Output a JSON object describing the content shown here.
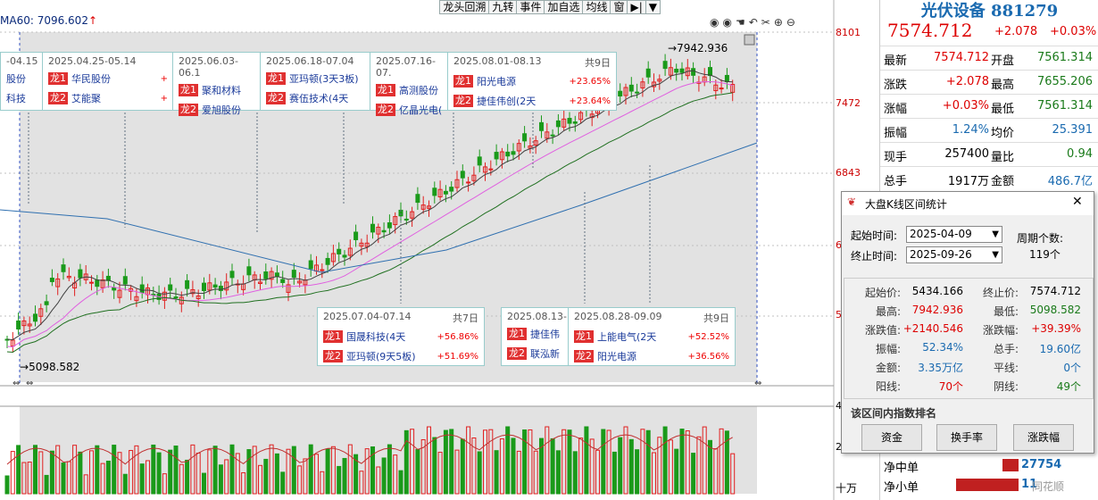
{
  "chart": {
    "ma_label": "MA60: 7096.602",
    "ma_arrow": "↑",
    "toolbar": [
      "龙头回溯",
      "九转",
      "事件",
      "加自选",
      "均线",
      "窗",
      "▶|",
      "▼"
    ],
    "icons": [
      "eye-icon",
      "eye-icon",
      "hand-icon",
      "undo-icon",
      "scissors-icon",
      "zoom-in-icon",
      "zoom-out-icon"
    ],
    "price_ticks": [
      "8101",
      "7472",
      "6843",
      "6",
      "5",
      "4",
      "2"
    ],
    "high_marker": "7942.936",
    "low_marker": "5098.582",
    "bottom_label": "十万",
    "events": [
      {
        "range": "-04.15",
        "rows": [
          {
            "tag": "",
            "name": "股份",
            "pct": ""
          },
          {
            "tag": "",
            "name": "科技",
            "pct": ""
          }
        ]
      },
      {
        "range": "2025.04.25-05.14",
        "rows": [
          {
            "tag": "龙1",
            "name": "华民股份",
            "pct": "+"
          },
          {
            "tag": "龙2",
            "name": "艾能聚",
            "pct": "+"
          }
        ]
      },
      {
        "range": "2025.06.03-06.1",
        "rows": [
          {
            "tag": "龙1",
            "name": "聚和材料",
            "pct": ""
          },
          {
            "tag": "龙2",
            "name": "爱旭股份",
            "pct": ""
          }
        ]
      },
      {
        "range": "2025.06.18-07.04",
        "rows": [
          {
            "tag": "龙1",
            "name": "亚玛顿(3天3板)",
            "pct": ""
          },
          {
            "tag": "龙2",
            "name": "赛伍技术(4天",
            "pct": ""
          }
        ]
      },
      {
        "range": "2025.07.16-07.",
        "rows": [
          {
            "tag": "龙1",
            "name": "高测股份",
            "pct": ""
          },
          {
            "tag": "龙2",
            "name": "亿晶光电(",
            "pct": ""
          }
        ]
      },
      {
        "range": "2025.08.01-08.13",
        "days": "共9日",
        "rows": [
          {
            "tag": "龙1",
            "name": "阳光电源",
            "pct": "+23.65%"
          },
          {
            "tag": "龙2",
            "name": "捷佳伟创(2天",
            "pct": "+23.64%"
          }
        ]
      },
      {
        "range": "2025.07.04-07.14",
        "days": "共7日",
        "rows": [
          {
            "tag": "龙1",
            "name": "国晟科技(4天",
            "pct": "+56.86%"
          },
          {
            "tag": "龙2",
            "name": "亚玛顿(9天5板)",
            "pct": "+51.69%"
          }
        ]
      },
      {
        "range": "2025.08.13-",
        "rows": [
          {
            "tag": "龙1",
            "name": "捷佳伟",
            "pct": ""
          },
          {
            "tag": "龙2",
            "name": "联泓新",
            "pct": ""
          }
        ]
      },
      {
        "range": "2025.08.28-09.09",
        "days": "共9日",
        "rows": [
          {
            "tag": "龙1",
            "name": "上能电气(2天",
            "pct": "+52.52%"
          },
          {
            "tag": "龙2",
            "name": "阳光电源",
            "pct": "+36.56%"
          }
        ]
      }
    ]
  },
  "quote": {
    "title": "光伏设备 881279",
    "price": "7574.712",
    "change": "+2.078",
    "change_pct": "+0.03%",
    "rows": [
      {
        "l1": "最新",
        "v1": "7574.712",
        "l2": "开盘",
        "v2": "7561.314"
      },
      {
        "l1": "涨跌",
        "v1": "+2.078",
        "l2": "最高",
        "v2": "7655.206"
      },
      {
        "l1": "涨幅",
        "v1": "+0.03%",
        "l2": "最低",
        "v2": "7561.314"
      },
      {
        "l1": "振幅",
        "v1": "1.24%",
        "l2": "均价",
        "v2": "25.391"
      },
      {
        "l1": "现手",
        "v1": "257400",
        "l2": "量比",
        "v2": "0.94"
      },
      {
        "l1": "总手",
        "v1": "1917万",
        "l2": "金额",
        "v2": "486.7亿"
      }
    ],
    "flow": [
      {
        "label": "净中单",
        "value": "27754"
      },
      {
        "label": "净小单",
        "value": "11"
      }
    ],
    "watermark": "同花顺"
  },
  "dialog": {
    "title": "大盘K线区间统计",
    "start_label": "起始时间:",
    "start_value": "2025-04-09",
    "end_label": "终止时间:",
    "end_value": "2025-09-26",
    "period_label": "周期个数:",
    "period_value": "119个",
    "stats": [
      {
        "l1": "起始价:",
        "v1": "5434.166",
        "l2": "终止价:",
        "v2": "7574.712"
      },
      {
        "l1": "最高:",
        "v1": "7942.936",
        "l2": "最低:",
        "v2": "5098.582"
      },
      {
        "l1": "涨跌值:",
        "v1": "+2140.546",
        "l2": "涨跌幅:",
        "v2": "+39.39%"
      },
      {
        "l1": "振幅:",
        "v1": "52.34%",
        "l2": "总手:",
        "v2": "19.60亿"
      },
      {
        "l1": "金额:",
        "v1": "3.35万亿",
        "l2": "平线:",
        "v2": "0个"
      },
      {
        "l1": "阳线:",
        "v1": "70个",
        "l2": "阴线:",
        "v2": "49个"
      }
    ],
    "rank_label": "该区间内指数排名",
    "buttons": [
      "资金",
      "换手率",
      "涨跌幅"
    ],
    "close": "✕"
  },
  "colors": {
    "up": "#e02020",
    "down": "#1a9a1a",
    "ma1": "#404040",
    "ma2": "#e060e0",
    "ma3": "#207020",
    "ma4": "#3070b0"
  }
}
